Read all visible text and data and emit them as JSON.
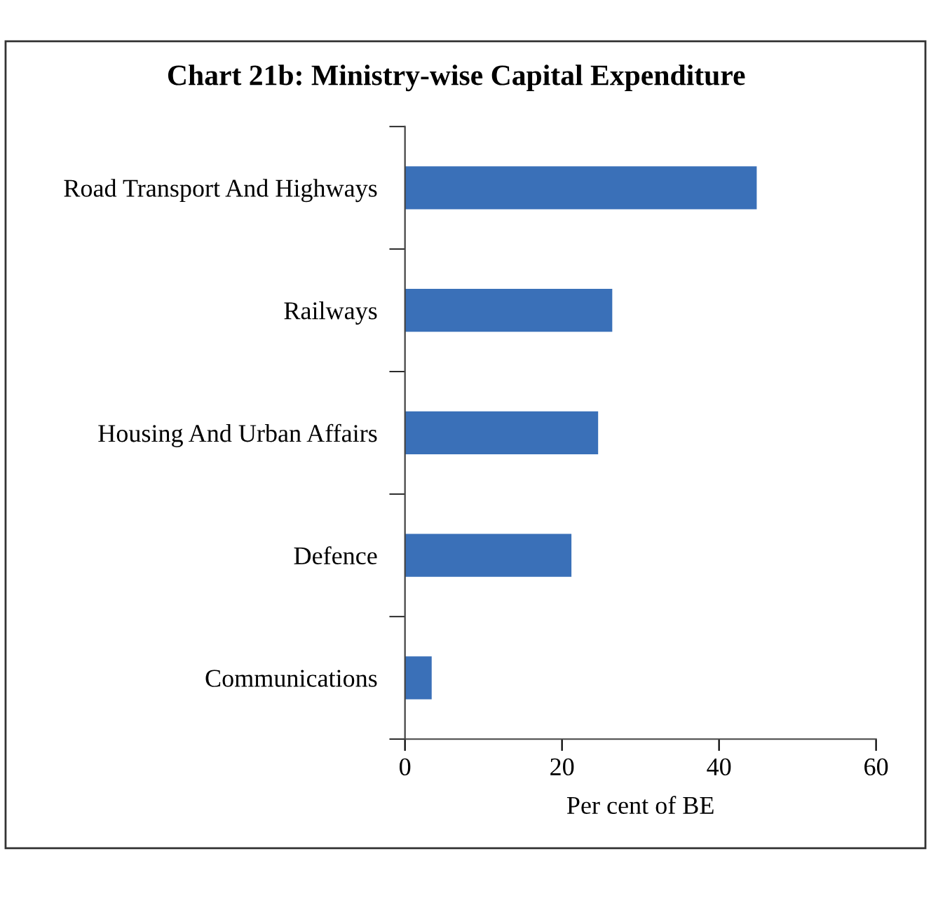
{
  "chart_data": {
    "type": "bar",
    "orientation": "horizontal",
    "title": "Chart 21b: Ministry-wise Capital Expenditure",
    "categories": [
      "Road Transport And Highways",
      "Railways",
      "Housing And Urban Affairs",
      "Defence",
      "Communications"
    ],
    "values": [
      44.8,
      26.4,
      24.6,
      21.2,
      3.4
    ],
    "color": "#3a70b8",
    "xlim": [
      0,
      60
    ],
    "xticks": [
      0,
      20,
      40,
      60
    ],
    "xlabel": "Per cent of BE",
    "grid": false,
    "legend": false
  }
}
